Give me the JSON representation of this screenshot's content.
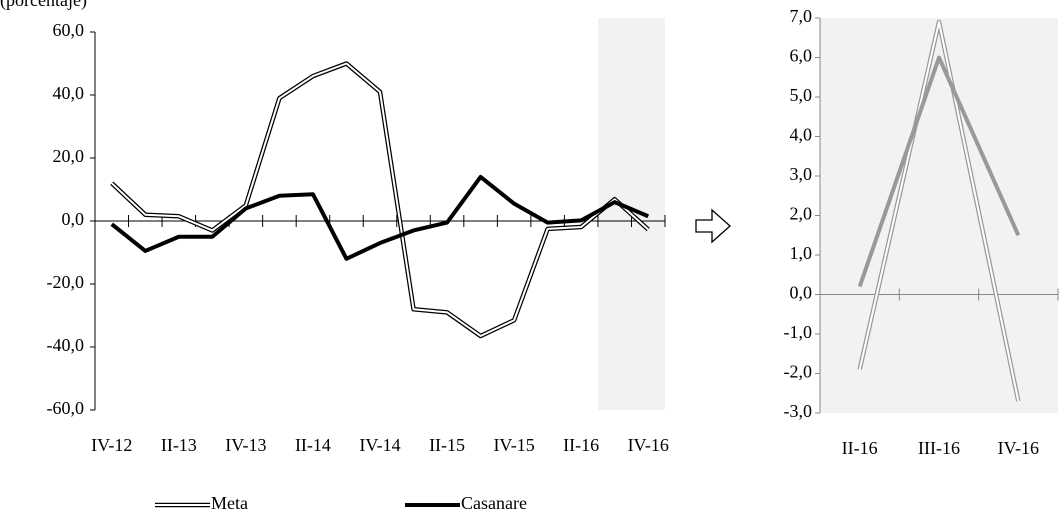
{
  "chart_data": [
    {
      "type": "line",
      "y_label": "(porcentaje)",
      "categories": [
        "IV-12",
        null,
        "II-13",
        null,
        "IV-13",
        null,
        "II-14",
        null,
        "IV-14",
        null,
        "II-15",
        null,
        "IV-15",
        null,
        "II-16",
        null,
        "IV-16"
      ],
      "series": [
        {
          "name": "Meta",
          "color": "#000000",
          "style": "double",
          "values": [
            12,
            2,
            1.5,
            -3,
            5,
            39,
            46,
            50,
            41,
            -28,
            -29,
            -36.5,
            -31.5,
            -2.5,
            -1.9,
            6.9,
            -2.7
          ]
        },
        {
          "name": "Casanare",
          "color": "#000000",
          "style": "thick",
          "values": [
            -1,
            -9.5,
            -5,
            -5,
            4,
            8,
            8.5,
            -12,
            -7,
            -3,
            -0.5,
            14,
            5.5,
            -0.5,
            0.2,
            6.0,
            1.5
          ]
        }
      ],
      "ylim": [
        -60,
        60
      ],
      "yticks": [
        {
          "value": -60,
          "label": "-60,0"
        },
        {
          "value": -40,
          "label": "-40,0"
        },
        {
          "value": -20,
          "label": "-20,0"
        },
        {
          "value": 0,
          "label": "0,0"
        },
        {
          "value": 20,
          "label": "20,0"
        },
        {
          "value": 40,
          "label": "40,0"
        },
        {
          "value": 60,
          "label": "60,0"
        }
      ]
    },
    {
      "type": "line",
      "categories": [
        "II-16",
        "III-16",
        "IV-16"
      ],
      "series": [
        {
          "color": "#999999",
          "style": "double",
          "values": [
            -1.9,
            6.9,
            -2.7
          ]
        },
        {
          "color": "#999999",
          "style": "thick",
          "values": [
            0.2,
            6.0,
            1.5
          ]
        }
      ],
      "ylim": [
        -3,
        7
      ],
      "yticks": [
        {
          "value": -3,
          "label": "-3,0"
        },
        {
          "value": -2,
          "label": "-2,0"
        },
        {
          "value": -1,
          "label": "-1,0"
        },
        {
          "value": 0,
          "label": "0,0"
        },
        {
          "value": 1,
          "label": "1,0"
        },
        {
          "value": 2,
          "label": "2,0"
        },
        {
          "value": 3,
          "label": "3,0"
        },
        {
          "value": 4,
          "label": "4,0"
        },
        {
          "value": 5,
          "label": "5,0"
        },
        {
          "value": 6,
          "label": "6,0"
        },
        {
          "value": 7,
          "label": "7,0"
        }
      ]
    }
  ]
}
